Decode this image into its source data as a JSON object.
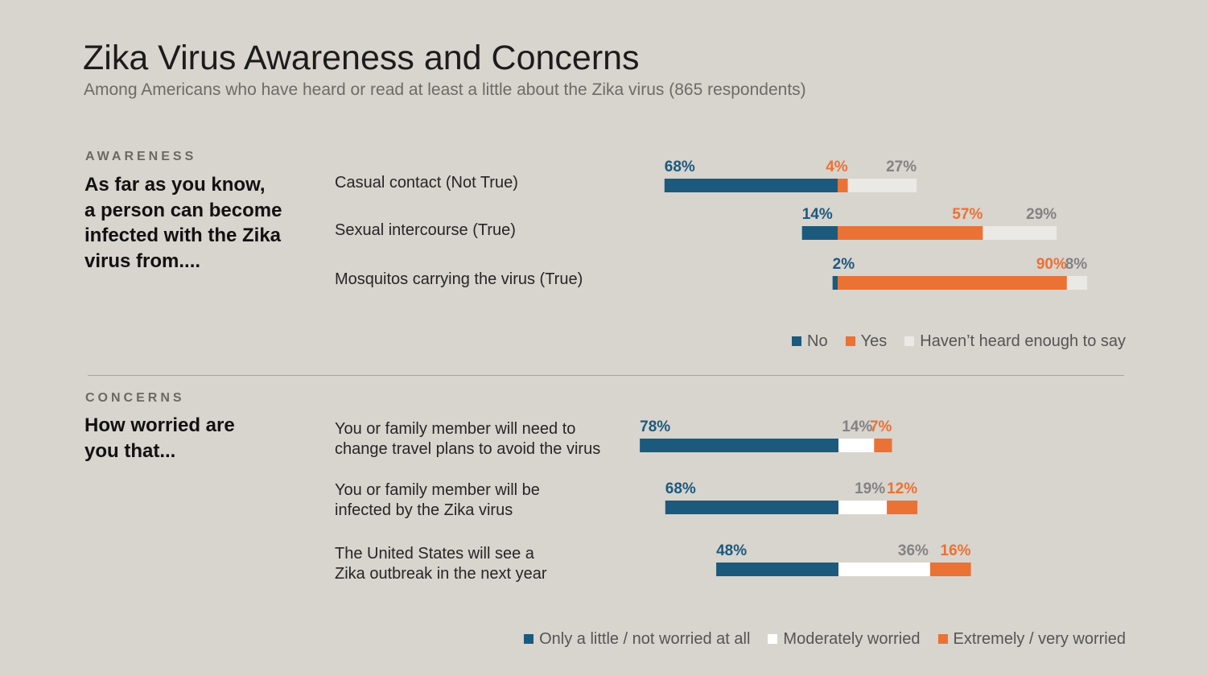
{
  "title": "Zika Virus Awareness and Concerns",
  "subtitle": "Among Americans who have heard or read at least a little about the Zika virus (865 respondents)",
  "colors": {
    "blue": "#1c5a7d",
    "orange": "#ea7234",
    "light": "#ebe9e5",
    "white": "#ffffff",
    "gray_label": "#838383",
    "divider": "#a9a5a0"
  },
  "chart_data": [
    {
      "type": "bar",
      "stacked": true,
      "orientation": "horizontal",
      "section_label": "AWARENESS",
      "question": "As far as you know,\na person can become\ninfected with the Zika\nvirus from....",
      "categories": [
        "Casual contact (Not True)",
        "Sexual intercourse (True)",
        "Mosquitos carrying the virus (True)"
      ],
      "series": [
        {
          "name": "No",
          "values": [
            68,
            14,
            2
          ],
          "labels": [
            "68%",
            "14%",
            "2%"
          ]
        },
        {
          "name": "Yes",
          "values": [
            4,
            57,
            90
          ],
          "labels": [
            "4%",
            "57%",
            "90%"
          ]
        },
        {
          "name": "Haven’t heard enough to say",
          "values": [
            27,
            29,
            8
          ],
          "labels": [
            "27%",
            "29%",
            "8%"
          ]
        }
      ],
      "legend": "bottom-right",
      "grid": false
    },
    {
      "type": "bar",
      "stacked": true,
      "orientation": "horizontal",
      "section_label": "CONCERNS",
      "question": "How worried are\nyou that...",
      "categories": [
        "You or family member will need to\nchange travel plans to avoid the virus",
        "You or family member will be\ninfected by the Zika virus",
        "The United States will see a\nZika outbreak in the next year"
      ],
      "series": [
        {
          "name": "Only a little / not worried at all",
          "values": [
            78,
            68,
            48
          ],
          "labels": [
            "78%",
            "68%",
            "48%"
          ]
        },
        {
          "name": "Moderately worried",
          "values": [
            14,
            19,
            36
          ],
          "labels": [
            "14%",
            "19%",
            "36%"
          ]
        },
        {
          "name": "Extremely / very worried",
          "values": [
            7,
            12,
            16
          ],
          "labels": [
            "7%",
            "12%",
            "16%"
          ]
        }
      ],
      "legend": "bottom-right",
      "grid": false
    }
  ]
}
